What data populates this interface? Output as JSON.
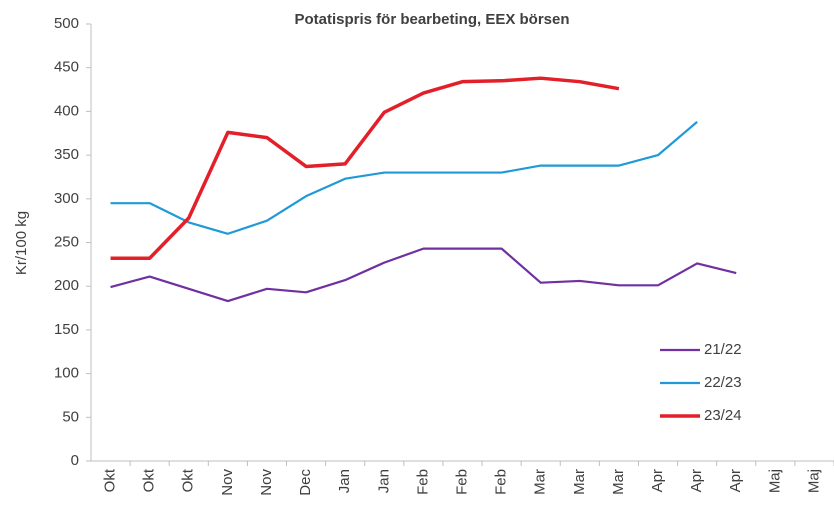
{
  "chart_data": {
    "type": "line",
    "title": "Potatispris för bearbeting, EEX börsen",
    "y_label": "Kr/100 kg",
    "categories": [
      "Okt",
      "Okt",
      "Okt",
      "Nov",
      "Nov",
      "Dec",
      "Jan",
      "Jan",
      "Feb",
      "Feb",
      "Feb",
      "Mar",
      "Mar",
      "Mar",
      "Apr",
      "Apr",
      "Apr",
      "Maj",
      "Maj"
    ],
    "series": [
      {
        "name": "21/22",
        "color": "#7030a0",
        "values": [
          199,
          211,
          197,
          183,
          197,
          193,
          207,
          227,
          243,
          243,
          243,
          204,
          206,
          201,
          201,
          226,
          215,
          null,
          null
        ]
      },
      {
        "name": "22/23",
        "color": "#1f9ad6",
        "values": [
          295,
          295,
          273,
          260,
          275,
          303,
          323,
          330,
          330,
          330,
          330,
          338,
          338,
          338,
          350,
          388,
          null,
          null,
          null
        ]
      },
      {
        "name": "23/24",
        "color": "#e3202a",
        "values": [
          232,
          232,
          278,
          376,
          370,
          337,
          340,
          399,
          421,
          434,
          435,
          438,
          434,
          426,
          null,
          null,
          null,
          null,
          null
        ]
      }
    ],
    "ylim": [
      0,
      500
    ],
    "yticks": [
      0,
      50,
      100,
      150,
      200,
      250,
      300,
      350,
      400,
      450,
      500
    ],
    "grid": false,
    "legend": "lower right"
  }
}
